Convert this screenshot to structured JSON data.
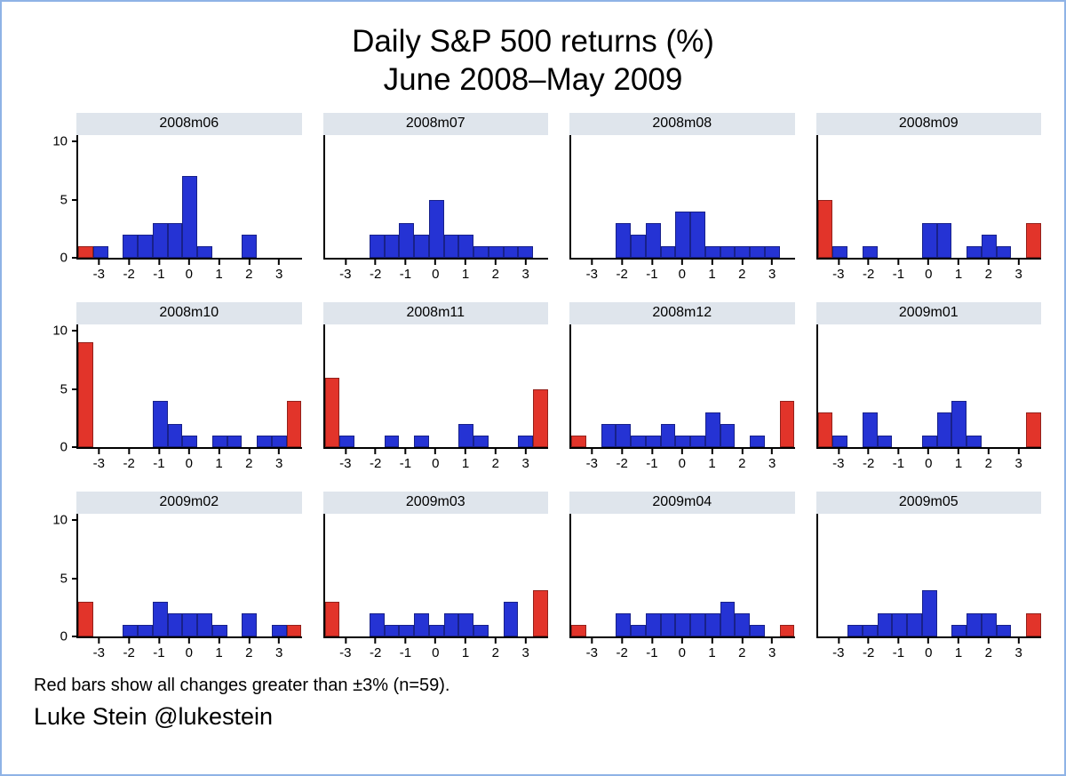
{
  "page": {
    "credit": "Luke Stein @lukestein"
  },
  "chart_data": {
    "type": "bar",
    "variant": "histogram-small-multiples",
    "title": "Daily S&P 500 returns (%)",
    "subtitle": "June 2008–May 2009",
    "xlabel": "",
    "ylabel": "",
    "xlim": [
      -3.75,
      3.75
    ],
    "ylim": [
      0,
      10.5
    ],
    "x_ticks": [
      -3,
      -2,
      -1,
      0,
      1,
      2,
      3
    ],
    "y_ticks": [
      0,
      5,
      10
    ],
    "bin_width": 0.5,
    "legend_note": "Red bars show all changes greater than ±3% (n=59).",
    "extreme_count": 59,
    "colors": {
      "normal": "#2533d4",
      "extreme": "#e2342a",
      "panel_header_bg": "#dfe5ec",
      "axis": "#000000"
    },
    "bars_format": [
      "bin_center",
      "count",
      "is_red_extreme"
    ],
    "panels": [
      {
        "label": "2008m06",
        "bars": [
          [
            -3.5,
            1,
            1
          ],
          [
            -3,
            1,
            0
          ],
          [
            -2,
            2,
            0
          ],
          [
            -1.5,
            2,
            0
          ],
          [
            -1,
            3,
            0
          ],
          [
            -0.5,
            3,
            0
          ],
          [
            0,
            7,
            0
          ],
          [
            0.5,
            1,
            0
          ],
          [
            2,
            2,
            0
          ]
        ]
      },
      {
        "label": "2008m07",
        "bars": [
          [
            -2,
            2,
            0
          ],
          [
            -1.5,
            2,
            0
          ],
          [
            -1,
            3,
            0
          ],
          [
            -0.5,
            2,
            0
          ],
          [
            0,
            5,
            0
          ],
          [
            0.5,
            2,
            0
          ],
          [
            1,
            2,
            0
          ],
          [
            1.5,
            1,
            0
          ],
          [
            2,
            1,
            0
          ],
          [
            2.5,
            1,
            0
          ],
          [
            3,
            1,
            0
          ]
        ]
      },
      {
        "label": "2008m08",
        "bars": [
          [
            -2,
            3,
            0
          ],
          [
            -1.5,
            2,
            0
          ],
          [
            -1,
            3,
            0
          ],
          [
            -0.5,
            1,
            0
          ],
          [
            0,
            4,
            0
          ],
          [
            0.5,
            4,
            0
          ],
          [
            1,
            1,
            0
          ],
          [
            1.5,
            1,
            0
          ],
          [
            2,
            1,
            0
          ],
          [
            2.5,
            1,
            0
          ],
          [
            3,
            1,
            0
          ]
        ]
      },
      {
        "label": "2008m09",
        "bars": [
          [
            -3.5,
            5,
            1
          ],
          [
            -3,
            1,
            0
          ],
          [
            -2,
            1,
            0
          ],
          [
            0,
            3,
            0
          ],
          [
            0.5,
            3,
            0
          ],
          [
            1.5,
            1,
            0
          ],
          [
            2,
            2,
            0
          ],
          [
            2.5,
            1,
            0
          ],
          [
            3.5,
            3,
            1
          ]
        ]
      },
      {
        "label": "2008m10",
        "bars": [
          [
            -3.5,
            9,
            1
          ],
          [
            -1,
            4,
            0
          ],
          [
            -0.5,
            2,
            0
          ],
          [
            0,
            1,
            0
          ],
          [
            1,
            1,
            0
          ],
          [
            1.5,
            1,
            0
          ],
          [
            2.5,
            1,
            0
          ],
          [
            3,
            1,
            0
          ],
          [
            3.5,
            4,
            1
          ]
        ]
      },
      {
        "label": "2008m11",
        "bars": [
          [
            -3.5,
            6,
            1
          ],
          [
            -3,
            1,
            0
          ],
          [
            -1.5,
            1,
            0
          ],
          [
            -0.5,
            1,
            0
          ],
          [
            1,
            2,
            0
          ],
          [
            1.5,
            1,
            0
          ],
          [
            3,
            1,
            0
          ],
          [
            3.5,
            5,
            1
          ]
        ]
      },
      {
        "label": "2008m12",
        "bars": [
          [
            -3.5,
            1,
            1
          ],
          [
            -2.5,
            2,
            0
          ],
          [
            -2,
            2,
            0
          ],
          [
            -1.5,
            1,
            0
          ],
          [
            -1,
            1,
            0
          ],
          [
            -0.5,
            2,
            0
          ],
          [
            0,
            1,
            0
          ],
          [
            0.5,
            1,
            0
          ],
          [
            1,
            3,
            0
          ],
          [
            1.5,
            2,
            0
          ],
          [
            2.5,
            1,
            0
          ],
          [
            3.5,
            4,
            1
          ]
        ]
      },
      {
        "label": "2009m01",
        "bars": [
          [
            -3.5,
            3,
            1
          ],
          [
            -3,
            1,
            0
          ],
          [
            -2,
            3,
            0
          ],
          [
            -1.5,
            1,
            0
          ],
          [
            0,
            1,
            0
          ],
          [
            0.5,
            3,
            0
          ],
          [
            1,
            4,
            0
          ],
          [
            1.5,
            1,
            0
          ],
          [
            3.5,
            3,
            1
          ]
        ]
      },
      {
        "label": "2009m02",
        "bars": [
          [
            -3.5,
            3,
            1
          ],
          [
            -2,
            1,
            0
          ],
          [
            -1.5,
            1,
            0
          ],
          [
            -1,
            3,
            0
          ],
          [
            -0.5,
            2,
            0
          ],
          [
            0,
            2,
            0
          ],
          [
            0.5,
            2,
            0
          ],
          [
            1,
            1,
            0
          ],
          [
            2,
            2,
            0
          ],
          [
            3,
            1,
            0
          ],
          [
            3.5,
            1,
            1
          ]
        ]
      },
      {
        "label": "2009m03",
        "bars": [
          [
            -3.5,
            3,
            1
          ],
          [
            -2,
            2,
            0
          ],
          [
            -1.5,
            1,
            0
          ],
          [
            -1,
            1,
            0
          ],
          [
            -0.5,
            2,
            0
          ],
          [
            0,
            1,
            0
          ],
          [
            0.5,
            2,
            0
          ],
          [
            1,
            2,
            0
          ],
          [
            1.5,
            1,
            0
          ],
          [
            2.5,
            3,
            0
          ],
          [
            3.5,
            4,
            1
          ]
        ]
      },
      {
        "label": "2009m04",
        "bars": [
          [
            -3.5,
            1,
            1
          ],
          [
            -2,
            2,
            0
          ],
          [
            -1.5,
            1,
            0
          ],
          [
            -1,
            2,
            0
          ],
          [
            -0.5,
            2,
            0
          ],
          [
            0,
            2,
            0
          ],
          [
            0.5,
            2,
            0
          ],
          [
            1,
            2,
            0
          ],
          [
            1.5,
            3,
            0
          ],
          [
            2,
            2,
            0
          ],
          [
            2.5,
            1,
            0
          ],
          [
            3.5,
            1,
            1
          ]
        ]
      },
      {
        "label": "2009m05",
        "bars": [
          [
            -2.5,
            1,
            0
          ],
          [
            -2,
            1,
            0
          ],
          [
            -1.5,
            2,
            0
          ],
          [
            -1,
            2,
            0
          ],
          [
            -0.5,
            2,
            0
          ],
          [
            0,
            4,
            0
          ],
          [
            1,
            1,
            0
          ],
          [
            1.5,
            2,
            0
          ],
          [
            2,
            2,
            0
          ],
          [
            2.5,
            1,
            0
          ],
          [
            3.5,
            2,
            1
          ]
        ]
      }
    ]
  }
}
